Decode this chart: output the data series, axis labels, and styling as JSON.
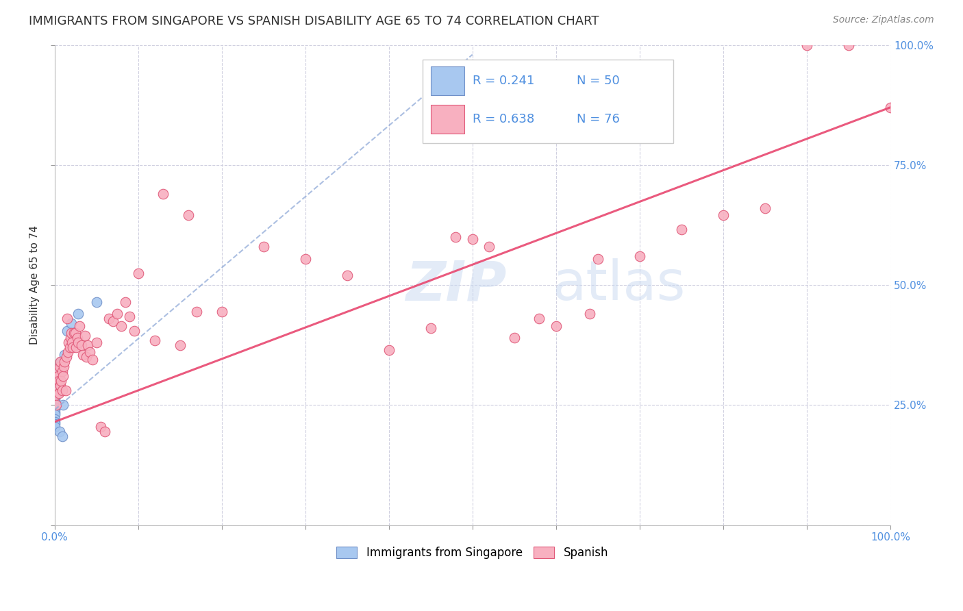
{
  "title": "IMMIGRANTS FROM SINGAPORE VS SPANISH DISABILITY AGE 65 TO 74 CORRELATION CHART",
  "source": "Source: ZipAtlas.com",
  "ylabel": "Disability Age 65 to 74",
  "watermark": "ZIPatlas",
  "legend_blue_R": "R = 0.241",
  "legend_blue_N": "N = 50",
  "legend_pink_R": "R = 0.638",
  "legend_pink_N": "N = 76",
  "blue_color": "#a8c8f0",
  "pink_color": "#f8b0c0",
  "blue_edge_color": "#7090c8",
  "pink_edge_color": "#e05878",
  "blue_trend_color": "#90aad8",
  "pink_trend_color": "#e84870",
  "background_color": "#ffffff",
  "grid_color": "#d0d0e0",
  "text_color": "#333333",
  "blue_label_color": "#4080d0",
  "pink_label_color": "#e05878",
  "axis_label_color": "#5090e0",
  "xlim": [
    0.0,
    1.0
  ],
  "ylim": [
    0.0,
    1.0
  ],
  "blue_scatter_x": [
    0.0005,
    0.0005,
    0.0005,
    0.0005,
    0.0005,
    0.0005,
    0.0005,
    0.0005,
    0.0005,
    0.0005,
    0.0005,
    0.0005,
    0.0005,
    0.0005,
    0.0005,
    0.0005,
    0.0005,
    0.0005,
    0.001,
    0.001,
    0.001,
    0.001,
    0.001,
    0.001,
    0.001,
    0.0015,
    0.0015,
    0.0015,
    0.0015,
    0.002,
    0.002,
    0.002,
    0.003,
    0.003,
    0.003,
    0.004,
    0.004,
    0.005,
    0.005,
    0.006,
    0.006,
    0.007,
    0.008,
    0.009,
    0.01,
    0.012,
    0.015,
    0.02,
    0.028,
    0.05
  ],
  "blue_scatter_y": [
    0.27,
    0.275,
    0.28,
    0.285,
    0.265,
    0.26,
    0.295,
    0.3,
    0.255,
    0.25,
    0.245,
    0.24,
    0.235,
    0.23,
    0.22,
    0.215,
    0.21,
    0.205,
    0.295,
    0.29,
    0.285,
    0.28,
    0.3,
    0.275,
    0.315,
    0.285,
    0.29,
    0.295,
    0.3,
    0.285,
    0.29,
    0.295,
    0.285,
    0.295,
    0.3,
    0.29,
    0.3,
    0.31,
    0.305,
    0.32,
    0.195,
    0.335,
    0.34,
    0.185,
    0.25,
    0.355,
    0.405,
    0.42,
    0.44,
    0.465
  ],
  "pink_scatter_x": [
    0.001,
    0.002,
    0.003,
    0.003,
    0.004,
    0.005,
    0.005,
    0.006,
    0.007,
    0.007,
    0.008,
    0.009,
    0.009,
    0.01,
    0.011,
    0.012,
    0.013,
    0.014,
    0.015,
    0.016,
    0.017,
    0.018,
    0.019,
    0.02,
    0.021,
    0.022,
    0.023,
    0.025,
    0.026,
    0.027,
    0.028,
    0.03,
    0.032,
    0.034,
    0.036,
    0.038,
    0.04,
    0.042,
    0.045,
    0.05,
    0.055,
    0.06,
    0.065,
    0.07,
    0.075,
    0.08,
    0.085,
    0.09,
    0.095,
    0.1,
    0.12,
    0.15,
    0.17,
    0.2,
    0.25,
    0.3,
    0.35,
    0.4,
    0.45,
    0.5,
    0.55,
    0.6,
    0.65,
    0.7,
    0.75,
    0.8,
    0.85,
    0.9,
    0.95,
    1.0,
    0.16,
    0.13,
    0.58,
    0.64,
    0.52,
    0.48
  ],
  "pink_scatter_y": [
    0.27,
    0.25,
    0.32,
    0.29,
    0.31,
    0.3,
    0.275,
    0.33,
    0.29,
    0.34,
    0.3,
    0.32,
    0.28,
    0.31,
    0.33,
    0.34,
    0.28,
    0.35,
    0.43,
    0.36,
    0.38,
    0.37,
    0.39,
    0.4,
    0.38,
    0.37,
    0.4,
    0.4,
    0.37,
    0.39,
    0.38,
    0.415,
    0.375,
    0.355,
    0.395,
    0.35,
    0.375,
    0.36,
    0.345,
    0.38,
    0.205,
    0.195,
    0.43,
    0.425,
    0.44,
    0.415,
    0.465,
    0.435,
    0.405,
    0.525,
    0.385,
    0.375,
    0.445,
    0.445,
    0.58,
    0.555,
    0.52,
    0.365,
    0.41,
    0.595,
    0.39,
    0.415,
    0.555,
    0.56,
    0.615,
    0.645,
    0.66,
    1.0,
    1.0,
    0.87,
    0.645,
    0.69,
    0.43,
    0.44,
    0.58,
    0.6
  ],
  "blue_trend_x": [
    0.0,
    0.5
  ],
  "blue_trend_y": [
    0.24,
    0.98
  ],
  "pink_trend_x": [
    0.0,
    1.0
  ],
  "pink_trend_y": [
    0.215,
    0.87
  ],
  "title_fontsize": 13,
  "label_fontsize": 11,
  "tick_fontsize": 11,
  "source_fontsize": 10
}
